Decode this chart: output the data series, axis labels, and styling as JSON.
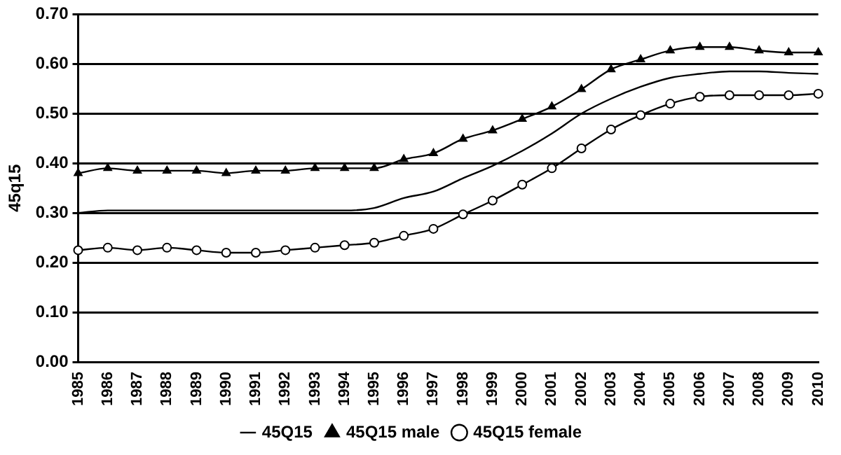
{
  "chart_data": {
    "type": "line",
    "ylabel": "45q15",
    "categories": [
      "1985",
      "1986",
      "1987",
      "1988",
      "1989",
      "1990",
      "1991",
      "1992",
      "1993",
      "1994",
      "1995",
      "1996",
      "1997",
      "1998",
      "1999",
      "2000",
      "2001",
      "2002",
      "2003",
      "2004",
      "2005",
      "2006",
      "2007",
      "2008",
      "2009",
      "2010"
    ],
    "series": [
      {
        "name": "45Q15",
        "color": "#000000",
        "marker": "none",
        "values": [
          0.3,
          0.305,
          0.305,
          0.305,
          0.305,
          0.305,
          0.305,
          0.305,
          0.305,
          0.305,
          0.31,
          0.33,
          0.343,
          0.37,
          0.395,
          0.425,
          0.46,
          0.5,
          0.53,
          0.554,
          0.572,
          0.58,
          0.585,
          0.585,
          0.582,
          0.58
        ]
      },
      {
        "name": "45Q15 male",
        "color": "#000000",
        "marker": "triangle",
        "values": [
          0.38,
          0.39,
          0.385,
          0.385,
          0.385,
          0.38,
          0.385,
          0.385,
          0.39,
          0.39,
          0.39,
          0.408,
          0.42,
          0.449,
          0.466,
          0.489,
          0.514,
          0.549,
          0.589,
          0.609,
          0.627,
          0.634,
          0.634,
          0.627,
          0.623,
          0.623
        ]
      },
      {
        "name": "45Q15 female",
        "color": "#000000",
        "marker": "circle",
        "values": [
          0.225,
          0.23,
          0.225,
          0.23,
          0.225,
          0.22,
          0.22,
          0.225,
          0.23,
          0.235,
          0.24,
          0.254,
          0.268,
          0.297,
          0.325,
          0.357,
          0.39,
          0.43,
          0.468,
          0.497,
          0.52,
          0.534,
          0.537,
          0.537,
          0.537,
          0.54
        ]
      }
    ],
    "ylim": [
      0,
      0.7
    ],
    "yticks": [
      {
        "value": 0,
        "label": "0.00"
      },
      {
        "value": 0.1,
        "label": "0.10"
      },
      {
        "value": 0.2,
        "label": "0.20"
      },
      {
        "value": 0.3,
        "label": "0.30"
      },
      {
        "value": 0.4,
        "label": "0.40"
      },
      {
        "value": 0.5,
        "label": "0.50"
      },
      {
        "value": 0.6,
        "label": "0.60"
      },
      {
        "value": 0.7,
        "label": "0.70"
      }
    ],
    "grid": "y",
    "legend": "bottom",
    "line_style": "solid"
  }
}
